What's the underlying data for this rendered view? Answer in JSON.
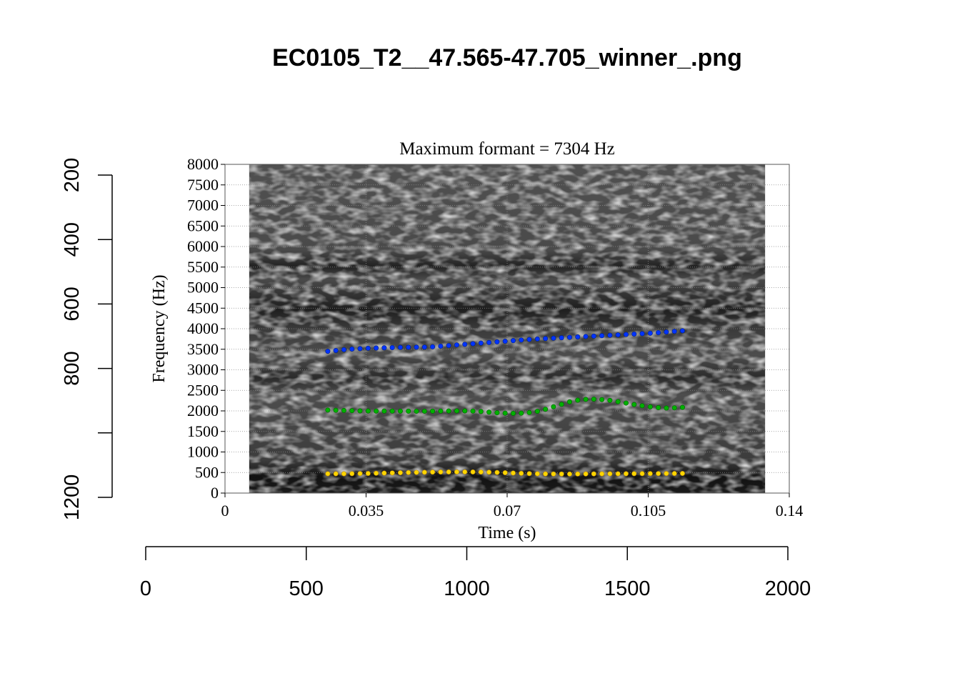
{
  "title": "EC0105_T2__47.565-47.705_winner_.png",
  "outer_axes": {
    "left_ticks": [
      200,
      400,
      600,
      800,
      1000,
      1200
    ],
    "left_tick_labels": [
      "200",
      "400",
      "600",
      "800",
      "",
      "1200"
    ],
    "bottom_ticks": [
      0,
      500,
      1000,
      1500,
      2000
    ],
    "bottom_tick_labels": [
      "0",
      "500",
      "1000",
      "1500",
      "2000"
    ]
  },
  "chart_data": {
    "type": "scatter",
    "subtitle": "Maximum formant  =  7304 Hz",
    "xlabel": "Time (s)",
    "ylabel": "Frequency (Hz)",
    "xlim": [
      0,
      0.14
    ],
    "ylim": [
      0,
      8000
    ],
    "x_ticks": [
      0,
      0.035,
      0.07,
      0.105,
      0.14
    ],
    "x_tick_labels": [
      "0",
      "0.035",
      "0.07",
      "0.105",
      "0.14"
    ],
    "y_ticks": [
      0,
      500,
      1000,
      1500,
      2000,
      2500,
      3000,
      3500,
      4000,
      4500,
      5000,
      5500,
      6000,
      6500,
      7000,
      7500,
      8000
    ],
    "y_tick_labels": [
      "0",
      "500",
      "1000",
      "1500",
      "2000",
      "2500",
      "3000",
      "3500",
      "4000",
      "4500",
      "5000",
      "5500",
      "6000",
      "6500",
      "7000",
      "7500",
      "8000"
    ],
    "grid": true,
    "spectrogram_time_range": [
      0.006,
      0.134
    ],
    "x": [
      0.0255,
      0.0275,
      0.0295,
      0.0315,
      0.0335,
      0.0355,
      0.0375,
      0.0395,
      0.0415,
      0.0435,
      0.0455,
      0.0475,
      0.0495,
      0.0515,
      0.0535,
      0.0555,
      0.0575,
      0.0595,
      0.0615,
      0.0635,
      0.0655,
      0.0675,
      0.0695,
      0.0715,
      0.0735,
      0.0755,
      0.0775,
      0.0795,
      0.0815,
      0.0835,
      0.0855,
      0.0875,
      0.0895,
      0.0915,
      0.0935,
      0.0955,
      0.0975,
      0.0995,
      0.1015,
      0.1035,
      0.1055,
      0.1075,
      0.1095,
      0.1115,
      0.1135
    ],
    "series": [
      {
        "color": "#ffd700",
        "stroke": "#b8860b",
        "values": [
          470,
          470,
          470,
          472,
          475,
          478,
          482,
          486,
          490,
          495,
          500,
          503,
          506,
          510,
          512,
          514,
          515,
          515,
          514,
          512,
          508,
          502,
          495,
          488,
          480,
          474,
          470,
          467,
          465,
          464,
          464,
          465,
          466,
          467,
          468,
          469,
          470,
          471,
          472,
          473,
          474,
          475,
          476,
          477,
          478
        ]
      },
      {
        "color": "#00b000",
        "stroke": "#006400",
        "values": [
          2020,
          2015,
          2010,
          2005,
          2000,
          1998,
          1996,
          1995,
          1995,
          1994,
          1993,
          1992,
          1992,
          1993,
          1995,
          1998,
          2000,
          2000,
          1995,
          1985,
          1970,
          1955,
          1945,
          1940,
          1945,
          1960,
          1990,
          2040,
          2100,
          2160,
          2220,
          2260,
          2280,
          2285,
          2275,
          2255,
          2225,
          2190,
          2155,
          2125,
          2100,
          2080,
          2070,
          2075,
          2085
        ]
      },
      {
        "color": "#0033ff",
        "stroke": "#002080",
        "values": [
          3450,
          3470,
          3490,
          3505,
          3515,
          3525,
          3530,
          3535,
          3540,
          3545,
          3548,
          3550,
          3552,
          3560,
          3575,
          3590,
          3605,
          3620,
          3635,
          3650,
          3665,
          3680,
          3695,
          3710,
          3725,
          3738,
          3750,
          3760,
          3770,
          3780,
          3790,
          3800,
          3810,
          3820,
          3830,
          3840,
          3850,
          3860,
          3870,
          3880,
          3890,
          3905,
          3920,
          3935,
          3950
        ]
      }
    ]
  }
}
